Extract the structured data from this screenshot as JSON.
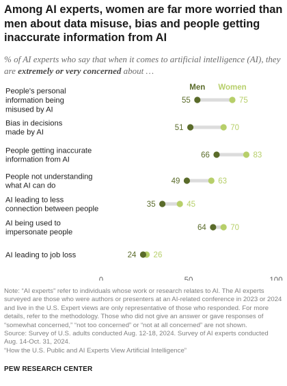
{
  "title": "Among AI experts, women are far more worried than men about data misuse, bias and people getting inaccurate information from AI",
  "subtitle": {
    "before": "% of AI experts who say that when it comes to artificial intelligence (AI), they are ",
    "emphasis": "extremely or very concerned",
    "after": " about …"
  },
  "colors": {
    "men": "#5a6b2a",
    "women": "#b7cf6a",
    "connector": "#dcdcdc",
    "axis_text": "#666666"
  },
  "chart_data": {
    "type": "dot",
    "xlim": [
      0,
      100
    ],
    "xticks": [
      "0",
      "50",
      "100"
    ],
    "series": [
      {
        "name": "Men",
        "values": [
          55,
          51,
          66,
          49,
          35,
          64,
          24
        ]
      },
      {
        "name": "Women",
        "values": [
          75,
          70,
          83,
          63,
          45,
          70,
          26
        ]
      }
    ],
    "categories": [
      [
        "People's personal",
        "information being",
        "misused by AI"
      ],
      [
        "Bias in decisions",
        "made by AI"
      ],
      [
        "People getting inaccurate",
        "information from AI"
      ],
      [
        "People not understanding",
        "what AI can do"
      ],
      [
        "AI leading to less",
        "connection between people"
      ],
      [
        "AI being used to",
        "impersonate people"
      ],
      [
        "AI leading to job loss"
      ]
    ]
  },
  "notes": [
    "Note: “AI experts” refer to individuals whose work or research relates to AI. The AI experts surveyed are those who were authors or presenters at an AI-related conference in 2023 or 2024 and live in the U.S. Expert views are only representative of those who responded. For more details, refer to the methodology. Those who did not give an answer or gave responses of “somewhat concerned,” “not too concerned” or “not at all concerned” are not shown.",
    "Source: Survey of U.S. adults conducted Aug. 12-18, 2024. Survey of AI experts conducted Aug. 14-Oct. 31, 2024.",
    "“How the U.S. Public and AI Experts View Artificial Intelligence”"
  ],
  "brand": "PEW RESEARCH CENTER"
}
